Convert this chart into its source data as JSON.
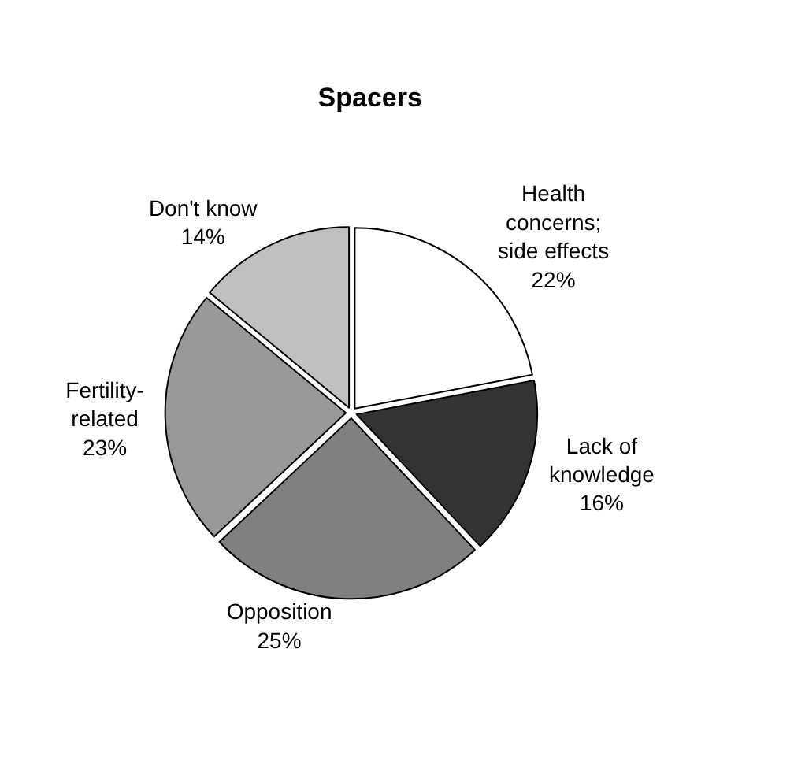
{
  "chart_data": {
    "type": "pie",
    "title": "Spacers",
    "categories": [
      "Health\nconcerns;\nside effects",
      "Lack of\nknowledge",
      "Opposition",
      "Fertility-\nrelated",
      "Don't know"
    ],
    "values": [
      22,
      16,
      25,
      23,
      14
    ],
    "value_labels": [
      "22%",
      "16%",
      "25%",
      "23%",
      "14%"
    ],
    "colors": [
      "#ffffff",
      "#333333",
      "#808080",
      "#999999",
      "#c0c0c0"
    ],
    "legend": false
  }
}
